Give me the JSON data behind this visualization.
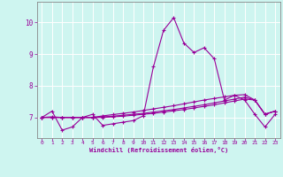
{
  "xlabel": "Windchill (Refroidissement éolien,°C)",
  "background_color": "#cef5f0",
  "grid_color": "#ffffff",
  "line_color": "#990099",
  "xlim": [
    -0.5,
    23.5
  ],
  "ylim": [
    6.35,
    10.65
  ],
  "xticks": [
    0,
    1,
    2,
    3,
    4,
    5,
    6,
    7,
    8,
    9,
    10,
    11,
    12,
    13,
    14,
    15,
    16,
    17,
    18,
    19,
    20,
    21,
    22,
    23
  ],
  "yticks": [
    7,
    8,
    9,
    10
  ],
  "hours": [
    0,
    1,
    2,
    3,
    4,
    5,
    6,
    7,
    8,
    9,
    10,
    11,
    12,
    13,
    14,
    15,
    16,
    17,
    18,
    19,
    20,
    21,
    22,
    23
  ],
  "curve1": [
    7.0,
    7.2,
    6.6,
    6.7,
    7.0,
    7.1,
    6.75,
    6.8,
    6.85,
    6.9,
    7.05,
    8.6,
    9.75,
    10.15,
    9.35,
    9.05,
    9.2,
    8.85,
    7.55,
    7.7,
    7.55,
    7.1,
    6.7,
    7.1
  ],
  "curve2": [
    7.0,
    7.02,
    7.0,
    7.0,
    7.0,
    7.0,
    7.05,
    7.09,
    7.13,
    7.17,
    7.22,
    7.27,
    7.32,
    7.37,
    7.43,
    7.49,
    7.55,
    7.6,
    7.65,
    7.7,
    7.72,
    7.55,
    7.1,
    7.2
  ],
  "curve3": [
    7.0,
    7.0,
    7.0,
    7.0,
    7.0,
    7.0,
    7.02,
    7.04,
    7.07,
    7.1,
    7.13,
    7.17,
    7.21,
    7.25,
    7.3,
    7.35,
    7.4,
    7.46,
    7.52,
    7.58,
    7.64,
    7.55,
    7.1,
    7.2
  ],
  "curve4": [
    7.0,
    7.0,
    7.0,
    7.0,
    7.0,
    7.0,
    7.0,
    7.02,
    7.04,
    7.07,
    7.1,
    7.13,
    7.17,
    7.21,
    7.25,
    7.3,
    7.35,
    7.4,
    7.46,
    7.52,
    7.58,
    7.55,
    7.1,
    7.2
  ]
}
